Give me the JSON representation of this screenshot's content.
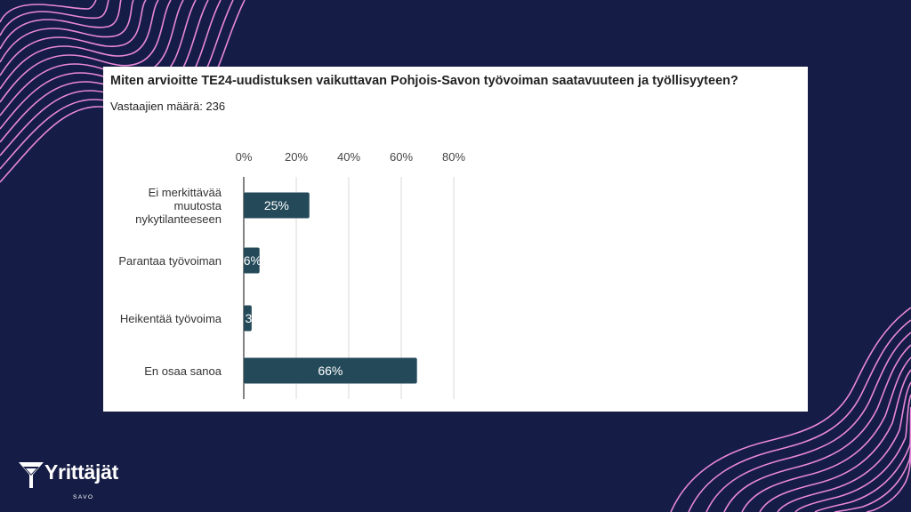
{
  "colors": {
    "background": "#151c45",
    "card": "#ffffff",
    "bar": "#244a5a",
    "grid": "#d9d9d9",
    "decoration": "#e888d8"
  },
  "brand": {
    "name": "Yrittäjät",
    "region": "SAVO"
  },
  "chart_data": {
    "type": "bar",
    "orientation": "horizontal",
    "title": "Miten arvioitte TE24-uudistuksen vaikuttavan Pohjois-Savon työvoiman saatavuuteen ja työllisyyteen?",
    "subtitle": "Vastaajien määrä: 236",
    "categories": [
      [
        "Ei merkittävää",
        "muutosta",
        "nykytilanteeseen"
      ],
      [
        "Parantaa työvoiman"
      ],
      [
        "Heikentää työvoima"
      ],
      [
        "En osaa sanoa"
      ]
    ],
    "values": [
      25,
      6,
      3,
      66
    ],
    "data_labels": [
      "25%",
      "6%",
      "3",
      "66%"
    ],
    "xlim": [
      0,
      80
    ],
    "ticks": [
      "0%",
      "20%",
      "40%",
      "60%",
      "80%"
    ],
    "tick_values": [
      0,
      20,
      40,
      60,
      80
    ],
    "grid": true,
    "legend": "none"
  }
}
